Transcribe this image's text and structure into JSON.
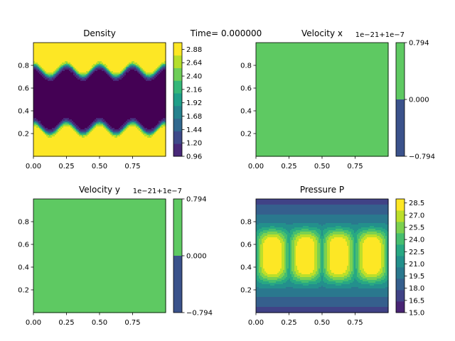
{
  "suptitle": "Time= 0.000000",
  "colors": {
    "viridis": [
      "#440154",
      "#482878",
      "#3e4989",
      "#31688e",
      "#26828e",
      "#1f9e89",
      "#35b779",
      "#6ece58",
      "#b5de2b",
      "#fde725"
    ],
    "vel_low": "#3b528b",
    "vel_high": "#5ec962"
  },
  "chart_data": [
    {
      "type": "heatmap",
      "title": "Density",
      "field": "density_kh",
      "xlim": [
        0,
        1
      ],
      "ylim": [
        0,
        1
      ],
      "xticks": [
        "0.00",
        "0.25",
        "0.50",
        "0.75"
      ],
      "yticks": [
        "0.2",
        "0.4",
        "0.6",
        "0.8"
      ],
      "colorbar": {
        "min": 0.96,
        "max": 3.0,
        "ticks": [
          "0.96",
          "1.20",
          "1.44",
          "1.68",
          "1.92",
          "2.16",
          "2.40",
          "2.64",
          "2.88"
        ],
        "offset": ""
      },
      "field_params": {
        "low": 1.0,
        "high": 3.0,
        "bands": [
          0.25,
          0.75
        ],
        "amplitude": 0.05,
        "periods": 4
      }
    },
    {
      "type": "heatmap",
      "title": "Velocity x",
      "field": "constant",
      "xlim": [
        0,
        1
      ],
      "ylim": [
        0,
        1
      ],
      "xticks": [
        "0.00",
        "0.25",
        "0.50",
        "0.75"
      ],
      "yticks": [
        "0.2",
        "0.4",
        "0.6",
        "0.8"
      ],
      "colorbar": {
        "min": -0.794,
        "max": 0.794,
        "ticks": [
          "0.794",
          "0.000",
          "−0.794"
        ],
        "offset": "1e−21+1e−7"
      }
    },
    {
      "type": "heatmap",
      "title": "Velocity y",
      "field": "constant",
      "xlim": [
        0,
        1
      ],
      "ylim": [
        0,
        1
      ],
      "xticks": [
        "0.00",
        "0.25",
        "0.50",
        "0.75"
      ],
      "yticks": [
        "0.2",
        "0.4",
        "0.6",
        "0.8"
      ],
      "colorbar": {
        "min": -0.794,
        "max": 0.794,
        "ticks": [
          "0.794",
          "0.000",
          "−0.794"
        ],
        "offset": "1e−21+1e−7"
      }
    },
    {
      "type": "heatmap",
      "title": "Pressure P",
      "field": "pressure_columns",
      "xlim": [
        0,
        1
      ],
      "ylim": [
        0,
        1
      ],
      "xticks": [
        "0.00",
        "0.25",
        "0.50",
        "0.75"
      ],
      "yticks": [
        "0.2",
        "0.4",
        "0.6",
        "0.8"
      ],
      "colorbar": {
        "min": 15.0,
        "max": 29.0,
        "ticks": [
          "28.5",
          "27.0",
          "25.5",
          "24.0",
          "22.5",
          "21.0",
          "19.5",
          "18.0",
          "16.5",
          "15.0"
        ],
        "offset": ""
      },
      "field_params": {
        "min": 15.0,
        "max": 29.0,
        "columns": 4
      }
    }
  ]
}
